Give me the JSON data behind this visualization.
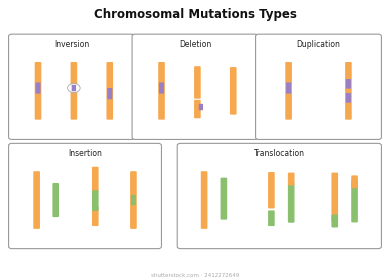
{
  "title": "Chromosomal Mutations Types",
  "title_fontsize": 8.5,
  "title_fontweight": "bold",
  "bg_color": "#ffffff",
  "chrom_color": "#F5A84E",
  "green_color": "#8ABF6E",
  "segment_color": "#9B7FC4",
  "arrow_color": "#6EC6E0",
  "box_edge_color": "#999999",
  "watermark": "shutterstock.com · 2412272649",
  "panels_top": [
    {
      "label": "Inversion"
    },
    {
      "label": "Deletion"
    },
    {
      "label": "Duplication"
    }
  ],
  "panels_bot": [
    {
      "label": "Insertion"
    },
    {
      "label": "Translocation"
    }
  ]
}
